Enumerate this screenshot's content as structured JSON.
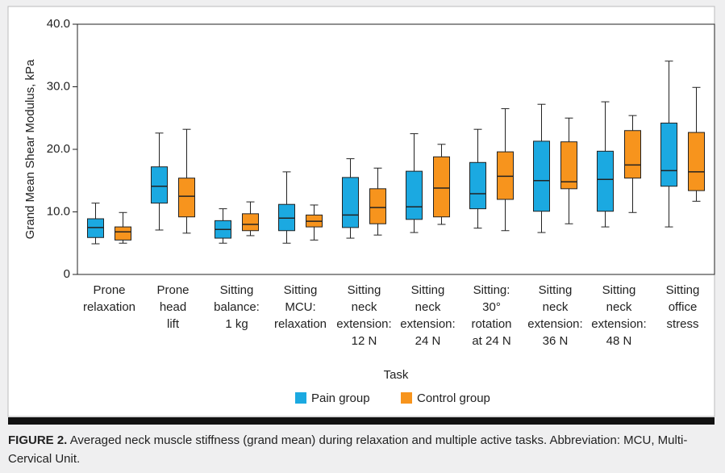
{
  "chart_data": {
    "type": "box",
    "y_label": "Grand Mean Shear Modulus, kPa",
    "x_label": "Task",
    "categories": [
      [
        "Prone",
        "relaxation"
      ],
      [
        "Prone",
        "head",
        "lift"
      ],
      [
        "Sitting",
        "balance:",
        "1 kg"
      ],
      [
        "Sitting",
        "MCU:",
        "relaxation"
      ],
      [
        "Sitting",
        "neck",
        "extension:",
        "12 N"
      ],
      [
        "Sitting",
        "neck",
        "extension:",
        "24 N"
      ],
      [
        "Sitting:",
        "30°",
        "rotation",
        "at 24 N"
      ],
      [
        "Sitting",
        "neck",
        "extension:",
        "36 N"
      ],
      [
        "Sitting",
        "neck",
        "extension:",
        "48 N"
      ],
      [
        "Sitting",
        "office",
        "stress"
      ]
    ],
    "ylim": [
      0,
      40
    ],
    "yticks": [
      0,
      {
        "value": 10,
        "label": "10.0"
      },
      {
        "value": 20,
        "label": "20.0"
      },
      {
        "value": 30,
        "label": "30.0"
      },
      {
        "value": 40,
        "label": "40.0"
      }
    ],
    "series": [
      {
        "name": "Pain group",
        "color": "#1ba9e1",
        "boxes": [
          {
            "min": 4.9,
            "q1": 5.9,
            "median": 7.5,
            "q3": 8.9,
            "max": 11.4
          },
          {
            "min": 7.1,
            "q1": 11.4,
            "median": 14.1,
            "q3": 17.2,
            "max": 22.6
          },
          {
            "min": 5.0,
            "q1": 5.8,
            "median": 7.2,
            "q3": 8.6,
            "max": 10.5
          },
          {
            "min": 5.0,
            "q1": 7.0,
            "median": 9.0,
            "q3": 11.2,
            "max": 16.4
          },
          {
            "min": 5.8,
            "q1": 7.5,
            "median": 9.5,
            "q3": 15.5,
            "max": 18.5
          },
          {
            "min": 6.7,
            "q1": 8.8,
            "median": 10.8,
            "q3": 16.5,
            "max": 22.5
          },
          {
            "min": 7.4,
            "q1": 10.5,
            "median": 12.9,
            "q3": 17.9,
            "max": 23.2
          },
          {
            "min": 6.7,
            "q1": 10.1,
            "median": 15.0,
            "q3": 21.3,
            "max": 27.2
          },
          {
            "min": 7.6,
            "q1": 10.1,
            "median": 15.2,
            "q3": 19.7,
            "max": 27.6
          },
          {
            "min": 7.6,
            "q1": 14.1,
            "median": 16.6,
            "q3": 24.2,
            "max": 34.1
          }
        ]
      },
      {
        "name": "Control group",
        "color": "#f7941d",
        "boxes": [
          {
            "min": 5.0,
            "q1": 5.5,
            "median": 6.8,
            "q3": 7.6,
            "max": 9.9
          },
          {
            "min": 6.6,
            "q1": 9.2,
            "median": 12.5,
            "q3": 15.4,
            "max": 23.2
          },
          {
            "min": 6.2,
            "q1": 7.0,
            "median": 8.0,
            "q3": 9.7,
            "max": 11.6
          },
          {
            "min": 5.5,
            "q1": 7.6,
            "median": 8.5,
            "q3": 9.5,
            "max": 11.1
          },
          {
            "min": 6.3,
            "q1": 8.1,
            "median": 10.7,
            "q3": 13.7,
            "max": 17.0
          },
          {
            "min": 8.0,
            "q1": 9.2,
            "median": 13.8,
            "q3": 18.8,
            "max": 20.8
          },
          {
            "min": 7.0,
            "q1": 12.0,
            "median": 15.7,
            "q3": 19.6,
            "max": 26.5
          },
          {
            "min": 8.1,
            "q1": 13.7,
            "median": 14.8,
            "q3": 21.2,
            "max": 25.0
          },
          {
            "min": 9.9,
            "q1": 15.4,
            "median": 17.5,
            "q3": 23.0,
            "max": 25.4
          },
          {
            "min": 11.7,
            "q1": 13.4,
            "median": 16.4,
            "q3": 22.7,
            "max": 29.9
          }
        ]
      }
    ],
    "caption_label": "FIGURE 2.",
    "caption": "Averaged neck muscle stiffness (grand mean) during relaxation and multiple active tasks. Abbreviation: MCU, Multi-Cervical Unit."
  }
}
